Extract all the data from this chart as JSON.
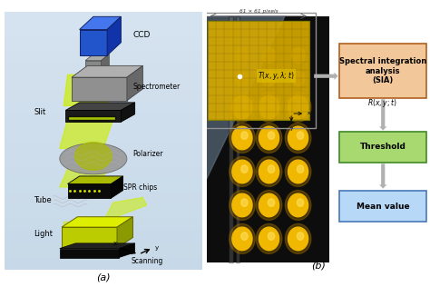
{
  "fig_width": 4.74,
  "fig_height": 3.16,
  "bg_color": "#ffffff",
  "panel_a_label": "(a)",
  "panel_b_label": "(b)",
  "panel_a_bg_top": "#c8dce8",
  "panel_a_bg_bot": "#dce8f0",
  "box_sia_text": "Spectral integration\nanalysis\n(SIA)",
  "box_sia_color": "#f2c89a",
  "box_sia_edge": "#b06020",
  "box_threshold_text": "Threshold",
  "box_threshold_color": "#a8d870",
  "box_threshold_edge": "#408828",
  "box_mean_text": "Mean value",
  "box_mean_color": "#b8d8f8",
  "box_mean_edge": "#4878b8",
  "label_pixels": "61 × 61 pixels",
  "arrow_color": "#b0b0b0",
  "grid_color": "#906600",
  "grid_fill": "#d8b000",
  "spr_bg": "#101010",
  "spot_color": "#f0b800",
  "spot_color2": "#c08000"
}
